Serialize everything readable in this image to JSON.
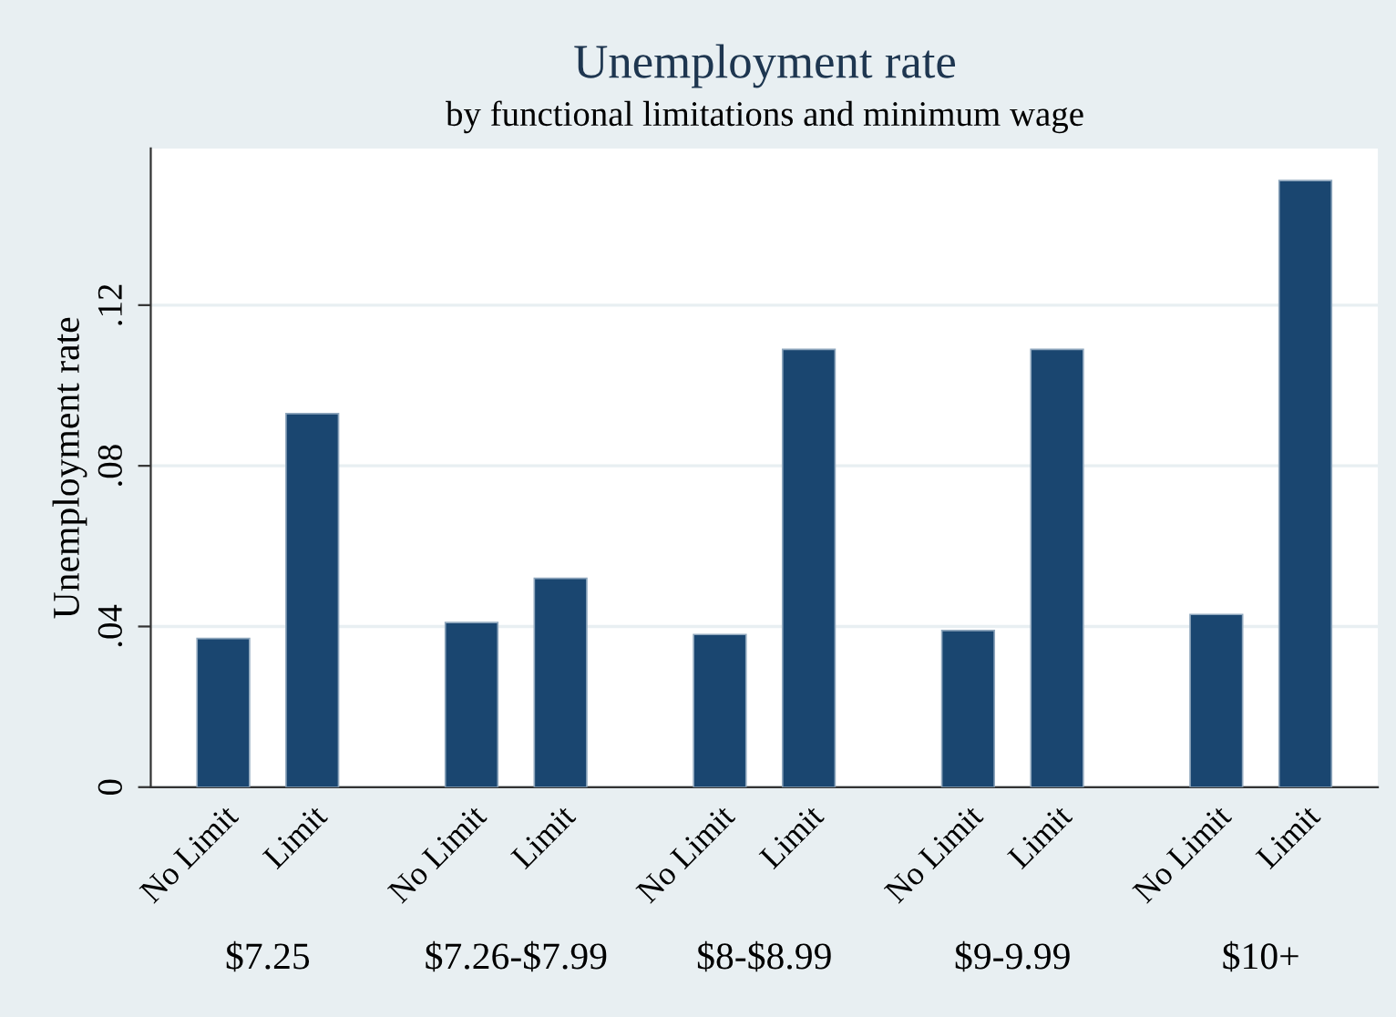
{
  "chart_data": {
    "type": "bar",
    "title": "Unemployment rate",
    "subtitle": "by functional limitations and minimum wage",
    "ylabel": "Unemployment rate",
    "categories": [
      "No Limit",
      "Limit",
      "No Limit",
      "Limit",
      "No Limit",
      "Limit",
      "No Limit",
      "Limit",
      "No Limit",
      "Limit"
    ],
    "values": [
      0.037,
      0.093,
      0.041,
      0.052,
      0.038,
      0.109,
      0.039,
      0.109,
      0.043,
      0.151
    ],
    "color": "#1a4670",
    "annotations": [
      "$7.25",
      "$7.26-$7.99",
      "$8-$8.99",
      "$9-9.99",
      "$10+"
    ],
    "ylim": [
      0,
      0.159
    ],
    "yticks": [
      0,
      {
        "value": 0.04,
        "label": ".04"
      },
      {
        "value": 0.08,
        "label": ".08"
      },
      {
        "value": 0.12,
        "label": ".12"
      }
    ],
    "grid": "y",
    "legend": false
  }
}
